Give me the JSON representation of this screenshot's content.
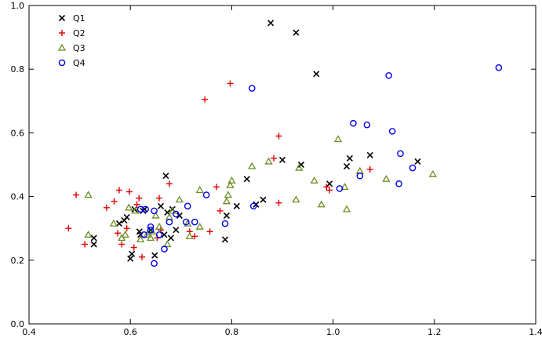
{
  "chart_data": {
    "type": "scatter",
    "xlim": [
      0.4,
      1.4
    ],
    "ylim": [
      0.0,
      1.0
    ],
    "x_ticks": [
      "0.4",
      "0.6",
      "0.8",
      "1.0",
      "1.2",
      "1.4"
    ],
    "y_ticks": [
      "0.0",
      "0.2",
      "0.4",
      "0.6",
      "0.8",
      "1.0"
    ],
    "x_tick_values": [
      0.4,
      0.6,
      0.8,
      1.0,
      1.2,
      1.4
    ],
    "y_tick_values": [
      0.0,
      0.2,
      0.4,
      0.6,
      0.8,
      1.0
    ],
    "grid": false,
    "legend": "top-left",
    "series": [
      {
        "name": "Q1",
        "marker": "x",
        "color": "#000000",
        "points": [
          [
            0.528,
            0.27
          ],
          [
            0.528,
            0.25
          ],
          [
            0.578,
            0.315
          ],
          [
            0.588,
            0.325
          ],
          [
            0.593,
            0.335
          ],
          [
            0.6,
            0.205
          ],
          [
            0.603,
            0.22
          ],
          [
            0.608,
            0.36
          ],
          [
            0.618,
            0.29
          ],
          [
            0.62,
            0.28
          ],
          [
            0.625,
            0.355
          ],
          [
            0.628,
            0.36
          ],
          [
            0.64,
            0.295
          ],
          [
            0.648,
            0.215
          ],
          [
            0.66,
            0.37
          ],
          [
            0.667,
            0.28
          ],
          [
            0.67,
            0.465
          ],
          [
            0.673,
            0.35
          ],
          [
            0.68,
            0.27
          ],
          [
            0.683,
            0.36
          ],
          [
            0.69,
            0.295
          ],
          [
            0.697,
            0.34
          ],
          [
            0.787,
            0.265
          ],
          [
            0.79,
            0.34
          ],
          [
            0.81,
            0.37
          ],
          [
            0.83,
            0.455
          ],
          [
            0.848,
            0.375
          ],
          [
            0.862,
            0.39
          ],
          [
            0.877,
            0.945
          ],
          [
            0.9,
            0.515
          ],
          [
            0.927,
            0.915
          ],
          [
            0.937,
            0.5
          ],
          [
            0.967,
            0.785
          ],
          [
            0.993,
            0.44
          ],
          [
            1.027,
            0.495
          ],
          [
            1.033,
            0.52
          ],
          [
            1.073,
            0.53
          ],
          [
            1.167,
            0.51
          ]
        ]
      },
      {
        "name": "Q2",
        "marker": "+",
        "color": "#e00000",
        "points": [
          [
            0.478,
            0.3
          ],
          [
            0.493,
            0.405
          ],
          [
            0.51,
            0.25
          ],
          [
            0.553,
            0.365
          ],
          [
            0.568,
            0.385
          ],
          [
            0.575,
            0.285
          ],
          [
            0.578,
            0.42
          ],
          [
            0.583,
            0.25
          ],
          [
            0.593,
            0.3
          ],
          [
            0.598,
            0.415
          ],
          [
            0.607,
            0.24
          ],
          [
            0.613,
            0.375
          ],
          [
            0.617,
            0.395
          ],
          [
            0.623,
            0.21
          ],
          [
            0.653,
            0.27
          ],
          [
            0.657,
            0.395
          ],
          [
            0.66,
            0.295
          ],
          [
            0.677,
            0.44
          ],
          [
            0.717,
            0.29
          ],
          [
            0.727,
            0.275
          ],
          [
            0.747,
            0.705
          ],
          [
            0.757,
            0.29
          ],
          [
            0.77,
            0.43
          ],
          [
            0.777,
            0.355
          ],
          [
            0.797,
            0.755
          ],
          [
            0.883,
            0.52
          ],
          [
            0.893,
            0.38
          ],
          [
            0.893,
            0.59
          ],
          [
            0.987,
            0.43
          ],
          [
            0.993,
            0.42
          ],
          [
            1.073,
            0.485
          ]
        ]
      },
      {
        "name": "Q3",
        "marker": "triangle",
        "color": "#6a8e23",
        "points": [
          [
            0.517,
            0.28
          ],
          [
            0.517,
            0.405
          ],
          [
            0.567,
            0.315
          ],
          [
            0.583,
            0.27
          ],
          [
            0.59,
            0.28
          ],
          [
            0.597,
            0.365
          ],
          [
            0.61,
            0.355
          ],
          [
            0.62,
            0.265
          ],
          [
            0.633,
            0.28
          ],
          [
            0.64,
            0.27
          ],
          [
            0.643,
            0.29
          ],
          [
            0.65,
            0.34
          ],
          [
            0.657,
            0.305
          ],
          [
            0.673,
            0.25
          ],
          [
            0.677,
            0.335
          ],
          [
            0.683,
            0.355
          ],
          [
            0.697,
            0.39
          ],
          [
            0.713,
            0.315
          ],
          [
            0.717,
            0.275
          ],
          [
            0.737,
            0.305
          ],
          [
            0.737,
            0.42
          ],
          [
            0.79,
            0.385
          ],
          [
            0.793,
            0.405
          ],
          [
            0.797,
            0.435
          ],
          [
            0.8,
            0.45
          ],
          [
            0.84,
            0.495
          ],
          [
            0.873,
            0.51
          ],
          [
            0.927,
            0.39
          ],
          [
            0.933,
            0.49
          ],
          [
            0.963,
            0.45
          ],
          [
            0.977,
            0.375
          ],
          [
            1.01,
            0.58
          ],
          [
            1.023,
            0.43
          ],
          [
            1.027,
            0.36
          ],
          [
            1.053,
            0.48
          ],
          [
            1.105,
            0.455
          ],
          [
            1.197,
            0.47
          ]
        ]
      },
      {
        "name": "Q4",
        "marker": "circle",
        "color": "#0000ee",
        "points": [
          [
            0.62,
            0.36
          ],
          [
            0.627,
            0.28
          ],
          [
            0.63,
            0.36
          ],
          [
            0.64,
            0.305
          ],
          [
            0.64,
            0.295
          ],
          [
            0.647,
            0.355
          ],
          [
            0.647,
            0.19
          ],
          [
            0.657,
            0.28
          ],
          [
            0.667,
            0.235
          ],
          [
            0.677,
            0.32
          ],
          [
            0.69,
            0.345
          ],
          [
            0.71,
            0.32
          ],
          [
            0.713,
            0.37
          ],
          [
            0.727,
            0.32
          ],
          [
            0.75,
            0.405
          ],
          [
            0.787,
            0.315
          ],
          [
            0.84,
            0.74
          ],
          [
            0.843,
            0.37
          ],
          [
            1.013,
            0.425
          ],
          [
            1.04,
            0.63
          ],
          [
            1.053,
            0.465
          ],
          [
            1.067,
            0.625
          ],
          [
            1.11,
            0.78
          ],
          [
            1.117,
            0.605
          ],
          [
            1.13,
            0.44
          ],
          [
            1.133,
            0.535
          ],
          [
            1.157,
            0.49
          ],
          [
            1.327,
            0.805
          ]
        ]
      }
    ]
  }
}
